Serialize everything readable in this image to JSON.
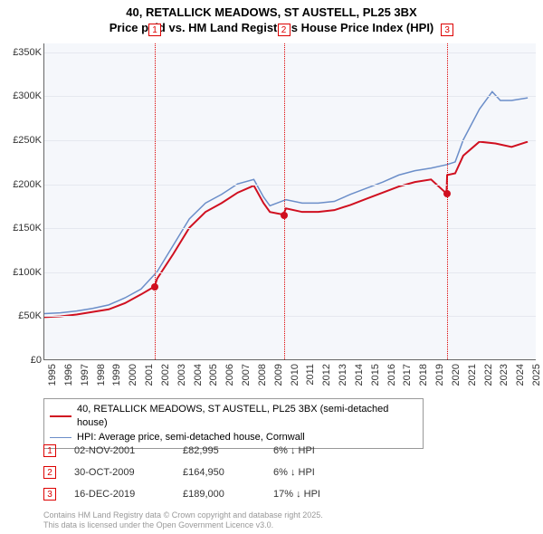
{
  "title_line1": "40, RETALLICK MEADOWS, ST AUSTELL, PL25 3BX",
  "title_line2": "Price paid vs. HM Land Registry's House Price Index (HPI)",
  "chart": {
    "type": "line",
    "background_color": "#f5f7fb",
    "grid_color": "#e5e8ef",
    "axis_color": "#666666",
    "x_years": [
      1995,
      1996,
      1997,
      1998,
      1999,
      2000,
      2001,
      2002,
      2003,
      2004,
      2005,
      2006,
      2007,
      2008,
      2009,
      2010,
      2011,
      2012,
      2013,
      2014,
      2015,
      2016,
      2017,
      2018,
      2019,
      2020,
      2021,
      2022,
      2023,
      2024,
      2025
    ],
    "xlim": [
      1995,
      2025.5
    ],
    "ylim": [
      0,
      360000
    ],
    "ytick_step": 50000,
    "ytick_labels": [
      "£0",
      "£50K",
      "£100K",
      "£150K",
      "£200K",
      "£250K",
      "£300K",
      "£350K"
    ],
    "xtick_fontsize": 11,
    "ytick_fontsize": 11,
    "xtick_rotation": -90,
    "series": [
      {
        "id": "hpi",
        "label": "HPI: Average price, semi-detached house, Cornwall",
        "color": "#6b8ec9",
        "line_width": 1.5,
        "data": [
          [
            1995,
            52000
          ],
          [
            1996,
            53000
          ],
          [
            1997,
            55000
          ],
          [
            1998,
            58000
          ],
          [
            1999,
            62000
          ],
          [
            2000,
            70000
          ],
          [
            2001,
            80000
          ],
          [
            2002,
            100000
          ],
          [
            2003,
            130000
          ],
          [
            2004,
            160000
          ],
          [
            2005,
            178000
          ],
          [
            2006,
            188000
          ],
          [
            2007,
            200000
          ],
          [
            2008,
            205000
          ],
          [
            2008.6,
            185000
          ],
          [
            2009,
            175000
          ],
          [
            2010,
            182000
          ],
          [
            2011,
            178000
          ],
          [
            2012,
            178000
          ],
          [
            2013,
            180000
          ],
          [
            2014,
            188000
          ],
          [
            2015,
            195000
          ],
          [
            2016,
            202000
          ],
          [
            2017,
            210000
          ],
          [
            2018,
            215000
          ],
          [
            2019,
            218000
          ],
          [
            2020,
            222000
          ],
          [
            2020.5,
            225000
          ],
          [
            2021,
            250000
          ],
          [
            2022,
            285000
          ],
          [
            2022.8,
            305000
          ],
          [
            2023.3,
            295000
          ],
          [
            2024,
            295000
          ],
          [
            2025,
            298000
          ]
        ]
      },
      {
        "id": "property",
        "label": "40, RETALLICK MEADOWS, ST AUSTELL, PL25 3BX (semi-detached house)",
        "color": "#d01020",
        "line_width": 2,
        "data": [
          [
            1995,
            48000
          ],
          [
            1996,
            49000
          ],
          [
            1997,
            51000
          ],
          [
            1998,
            54000
          ],
          [
            1999,
            57000
          ],
          [
            2000,
            64000
          ],
          [
            2001,
            74000
          ],
          [
            2001.84,
            82995
          ],
          [
            2002,
            92000
          ],
          [
            2003,
            120000
          ],
          [
            2004,
            150000
          ],
          [
            2005,
            168000
          ],
          [
            2006,
            178000
          ],
          [
            2007,
            190000
          ],
          [
            2008,
            198000
          ],
          [
            2008.6,
            178000
          ],
          [
            2009,
            168000
          ],
          [
            2009.83,
            164950
          ],
          [
            2010,
            172000
          ],
          [
            2011,
            168000
          ],
          [
            2012,
            168000
          ],
          [
            2013,
            170000
          ],
          [
            2014,
            176000
          ],
          [
            2015,
            183000
          ],
          [
            2016,
            190000
          ],
          [
            2017,
            197000
          ],
          [
            2018,
            202000
          ],
          [
            2019,
            205000
          ],
          [
            2019.96,
            189000
          ],
          [
            2020,
            210000
          ],
          [
            2020.5,
            212000
          ],
          [
            2021,
            232000
          ],
          [
            2022,
            248000
          ],
          [
            2023,
            246000
          ],
          [
            2024,
            242000
          ],
          [
            2025,
            248000
          ]
        ]
      }
    ],
    "markers": [
      {
        "num": "1",
        "x": 2001.84,
        "y": 82995
      },
      {
        "num": "2",
        "x": 2009.83,
        "y": 164950
      },
      {
        "num": "3",
        "x": 2019.96,
        "y": 189000
      }
    ],
    "marker_line_color": "#d00",
    "marker_box_border": "#d00",
    "sale_dot_color": "#d01020",
    "sale_dot_radius": 4
  },
  "legend": {
    "border_color": "#999999",
    "fontsize": 11
  },
  "sales": [
    {
      "num": "1",
      "date": "02-NOV-2001",
      "price": "£82,995",
      "delta": "6% ↓ HPI"
    },
    {
      "num": "2",
      "date": "30-OCT-2009",
      "price": "£164,950",
      "delta": "6% ↓ HPI"
    },
    {
      "num": "3",
      "date": "16-DEC-2019",
      "price": "£189,000",
      "delta": "17% ↓ HPI"
    }
  ],
  "attribution_line1": "Contains HM Land Registry data © Crown copyright and database right 2025.",
  "attribution_line2": "This data is licensed under the Open Government Licence v3.0."
}
